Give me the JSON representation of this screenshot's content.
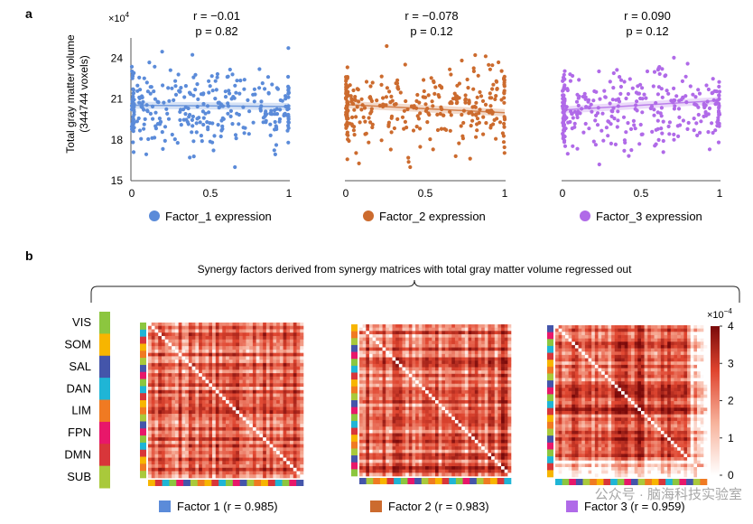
{
  "panel_a": {
    "label": "a",
    "ylabel_line1": "Total gray matter volume",
    "ylabel_line2": "(344744 voxels)",
    "y_multiplier": "×10",
    "y_multiplier_exp": "4"
  },
  "panel_b": {
    "label": "b",
    "title": "Synergy factors derived from synergy matrices with total gray matter volume regressed out",
    "colorbar_multiplier": "×10",
    "colorbar_exp": "−4",
    "networks": [
      {
        "name": "VIS",
        "color": "#8cc63f"
      },
      {
        "name": "SOM",
        "color": "#f7b500"
      },
      {
        "name": "SAL",
        "color": "#4455aa"
      },
      {
        "name": "DAN",
        "color": "#1fb5d6"
      },
      {
        "name": "LIM",
        "color": "#f07a22"
      },
      {
        "name": "FPN",
        "color": "#e8176a"
      },
      {
        "name": "DMN",
        "color": "#d8363a"
      },
      {
        "name": "SUB",
        "color": "#a9c93b"
      }
    ]
  },
  "watermark": "公众号 · 脑海科技实验室",
  "chart_data": [
    {
      "type": "scatter",
      "name": "Factor_1",
      "xlabel": "Factor_1 expression",
      "ylabel": "Total gray matter volume (344744 voxels)",
      "stat_r": "r = −0.01",
      "stat_p": "p = 0.82",
      "color": "#5b8bd9",
      "xlim": [
        0,
        1
      ],
      "ylim": [
        15,
        25.5
      ],
      "xticks": [
        0,
        0.5,
        1
      ],
      "yticks": [
        15,
        18,
        21,
        24
      ],
      "fit": {
        "x": [
          0,
          1
        ],
        "y": [
          20.55,
          20.45
        ]
      },
      "seed": 11
    },
    {
      "type": "scatter",
      "name": "Factor_2",
      "xlabel": "Factor_2 expression",
      "stat_r": "r = −0.078",
      "stat_p": "p = 0.12",
      "color": "#cc6b2e",
      "xlim": [
        0,
        1
      ],
      "ylim": [
        15,
        25.5
      ],
      "xticks": [
        0,
        0.5,
        1
      ],
      "fit": {
        "x": [
          0,
          1
        ],
        "y": [
          20.6,
          20.0
        ]
      },
      "seed": 23
    },
    {
      "type": "scatter",
      "name": "Factor_3",
      "xlabel": "Factor_3 expression",
      "stat_r": "r = 0.090",
      "stat_p": "p = 0.12",
      "color": "#b06ae8",
      "xlim": [
        0,
        1
      ],
      "ylim": [
        15,
        25.5
      ],
      "xticks": [
        0,
        0.5,
        1
      ],
      "fit": {
        "x": [
          0,
          1
        ],
        "y": [
          20.2,
          20.9
        ]
      },
      "seed": 37
    },
    {
      "type": "heatmap",
      "name": "Factor 1",
      "legend": "Factor 1 (r = 0.985)",
      "color": "#5b8bd9",
      "colorbar_range": [
        0,
        4
      ],
      "colorbar_ticks": [
        0,
        1,
        2,
        3,
        4
      ],
      "seed": 5
    },
    {
      "type": "heatmap",
      "name": "Factor 2",
      "legend": "Factor 2 (r = 0.983)",
      "color": "#cc6b2e",
      "colorbar_range": [
        0,
        4
      ],
      "seed": 9
    },
    {
      "type": "heatmap",
      "name": "Factor 3",
      "legend": "Factor 3 (r = 0.959)",
      "color": "#b06ae8",
      "colorbar_range": [
        0,
        4
      ],
      "seed": 15
    }
  ]
}
